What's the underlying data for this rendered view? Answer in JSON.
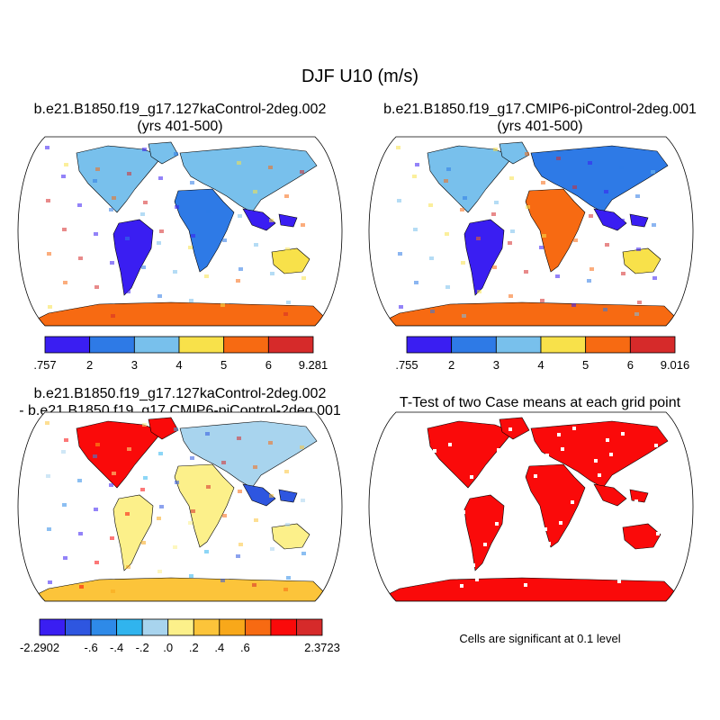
{
  "figure": {
    "title": "DJF U10 (m/s)",
    "note": "Cells are significant at 0.1 level"
  },
  "panels": [
    {
      "id": "case1",
      "title_line1": "b.e21.B1850.f19_g17.127kaControl-2deg.002",
      "title_line2": "(yrs 401-500)",
      "colorbar": {
        "colors": [
          "#3a1ef2",
          "#2e7ae6",
          "#78c0ec",
          "#f8e14a",
          "#f76a12",
          "#d62a2a"
        ],
        "tick_labels": [
          ".757",
          "2",
          "3",
          "4",
          "5",
          "6",
          "9.281"
        ]
      }
    },
    {
      "id": "case2",
      "title_line1": "b.e21.B1850.f19_g17.CMIP6-piControl-2deg.001",
      "title_line2": "(yrs 401-500)",
      "colorbar": {
        "colors": [
          "#3a1ef2",
          "#2e7ae6",
          "#78c0ec",
          "#f8e14a",
          "#f76a12",
          "#d62a2a"
        ],
        "tick_labels": [
          ".755",
          "2",
          "3",
          "4",
          "5",
          "6",
          "9.016"
        ]
      }
    },
    {
      "id": "difference",
      "title_line1": "b.e21.B1850.f19_g17.127kaControl-2deg.002",
      "title_line2": "- b.e21.B1850.f19_g17.CMIP6-piControl-2deg.001",
      "colorbar": {
        "colors": [
          "#3a1ef2",
          "#2e56e0",
          "#2e8ae8",
          "#30b4ee",
          "#a8d4ee",
          "#fcf08a",
          "#fcc43a",
          "#f8a81a",
          "#f76a12",
          "#fa0a0a",
          "#d62a2a"
        ],
        "tick_labels": [
          "-2.2902",
          "-.6",
          "-.4",
          "-.2",
          ".0",
          ".2",
          ".4",
          ".6",
          "2.3723"
        ]
      }
    },
    {
      "id": "ttest",
      "title_line1": "T-Test of two Case means at each grid point",
      "fill_color": "#fa0a0a"
    }
  ]
}
